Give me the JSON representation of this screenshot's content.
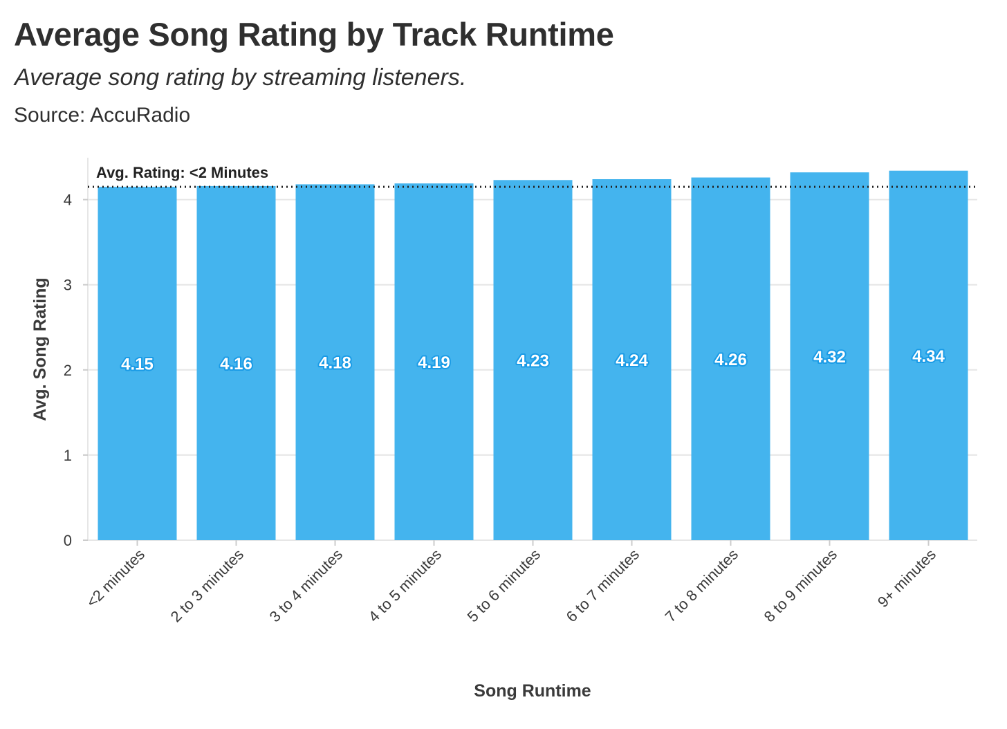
{
  "header": {
    "title": "Average Song Rating by Track Runtime",
    "subtitle": "Average song rating by streaming listeners.",
    "source": "Source: AccuRadio"
  },
  "colors": {
    "bar": "#44b4ee",
    "label_outline": "#1a9be6",
    "gridline": "#e6e6e6",
    "reference_line": "#222222"
  },
  "chart_data": {
    "type": "bar",
    "title": "Average Song Rating by Track Runtime",
    "subtitle": "Average song rating by streaming listeners.",
    "xlabel": "Song Runtime",
    "ylabel": "Avg. Song Rating",
    "ylim": [
      0,
      4.5
    ],
    "yticks": [
      0,
      1,
      2,
      3,
      4
    ],
    "grid": true,
    "categories": [
      "<2 minutes",
      "2 to 3 minutes",
      "3 to 4 minutes",
      "4 to 5 minutes",
      "5 to 6 minutes",
      "6 to 7 minutes",
      "7 to 8 minutes",
      "8 to 9 minutes",
      "9+ minutes"
    ],
    "values": [
      4.15,
      4.16,
      4.18,
      4.19,
      4.23,
      4.24,
      4.26,
      4.32,
      4.34
    ],
    "value_labels": [
      "4.15",
      "4.16",
      "4.18",
      "4.19",
      "4.23",
      "4.24",
      "4.26",
      "4.32",
      "4.34"
    ],
    "reference_line": {
      "value": 4.15,
      "label": "Avg. Rating: <2 Minutes",
      "style": "dotted"
    }
  }
}
